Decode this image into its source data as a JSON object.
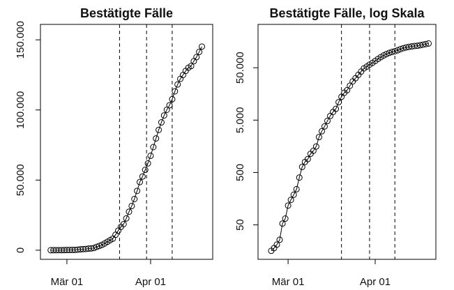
{
  "chart_data": [
    {
      "type": "line",
      "title": "Bestätigte Fälle",
      "log": false,
      "x": [
        -6,
        -5,
        -4,
        -3,
        -2,
        -1,
        0,
        1,
        2,
        3,
        4,
        5,
        6,
        7,
        8,
        9,
        10,
        11,
        12,
        13,
        14,
        15,
        16,
        17,
        18,
        19,
        20,
        21,
        22,
        23,
        24,
        25,
        26,
        27,
        28,
        29,
        30,
        31,
        32,
        33,
        34,
        35,
        36,
        37,
        38,
        39,
        40,
        41,
        42,
        43,
        44,
        45,
        46,
        47,
        48,
        49,
        50
      ],
      "values": [
        16,
        18,
        21,
        26,
        53,
        66,
        117,
        150,
        188,
        240,
        400,
        639,
        795,
        902,
        1139,
        1296,
        1567,
        2369,
        3062,
        3795,
        4838,
        6012,
        7156,
        8198,
        10999,
        13957,
        16662,
        18610,
        22672,
        27436,
        31554,
        36508,
        42288,
        48582,
        52547,
        57298,
        61913,
        67366,
        73522,
        79696,
        85778,
        91159,
        96092,
        100123,
        103374,
        107663,
        113296,
        118181,
        122171,
        124908,
        127854,
        130072,
        131359,
        134753,
        137698,
        141397,
        145184
      ],
      "xlim": [
        -9.8,
        54
      ],
      "ylim": [
        -6500,
        161000
      ],
      "xticks": [
        {
          "value": 0,
          "label": "Mär 01"
        },
        {
          "value": 31,
          "label": "Apr 01"
        }
      ],
      "yticks": [
        0,
        {
          "value": 50000,
          "label": "50.000"
        },
        {
          "value": 100000,
          "label": "100.000"
        },
        {
          "value": 150000,
          "label": "150.000"
        }
      ],
      "vlines": [
        19.5,
        29.5,
        39
      ]
    },
    {
      "type": "line",
      "title": "Bestätigte Fälle, log Skala",
      "log": true,
      "x": [
        -6,
        -5,
        -4,
        -3,
        -2,
        -1,
        0,
        1,
        2,
        3,
        4,
        5,
        6,
        7,
        8,
        9,
        10,
        11,
        12,
        13,
        14,
        15,
        16,
        17,
        18,
        19,
        20,
        21,
        22,
        23,
        24,
        25,
        26,
        27,
        28,
        29,
        30,
        31,
        32,
        33,
        34,
        35,
        36,
        37,
        38,
        39,
        40,
        41,
        42,
        43,
        44,
        45,
        46,
        47,
        48,
        49,
        50
      ],
      "values": [
        16,
        18,
        21,
        26,
        53,
        66,
        117,
        150,
        188,
        240,
        400,
        639,
        795,
        902,
        1139,
        1296,
        1567,
        2369,
        3062,
        3795,
        4838,
        6012,
        7156,
        8198,
        10999,
        13957,
        16662,
        18610,
        22672,
        27436,
        31554,
        36508,
        42288,
        48582,
        52547,
        57298,
        61913,
        67366,
        73522,
        79696,
        85778,
        91159,
        96092,
        100123,
        103374,
        107663,
        113296,
        118181,
        122171,
        124908,
        127854,
        130072,
        131359,
        134753,
        137698,
        141397,
        145184
      ],
      "xlim": [
        -10.7,
        52.6
      ],
      "ylim": [
        11,
        336000
      ],
      "xticks": [
        {
          "value": 0,
          "label": "Mär 01"
        },
        {
          "value": 31,
          "label": "Apr 01"
        }
      ],
      "yticks": [
        50,
        500,
        {
          "value": 5000,
          "label": "5.000"
        },
        {
          "value": 50000,
          "label": "50.000"
        }
      ],
      "vlines": [
        19,
        29,
        38
      ]
    }
  ]
}
